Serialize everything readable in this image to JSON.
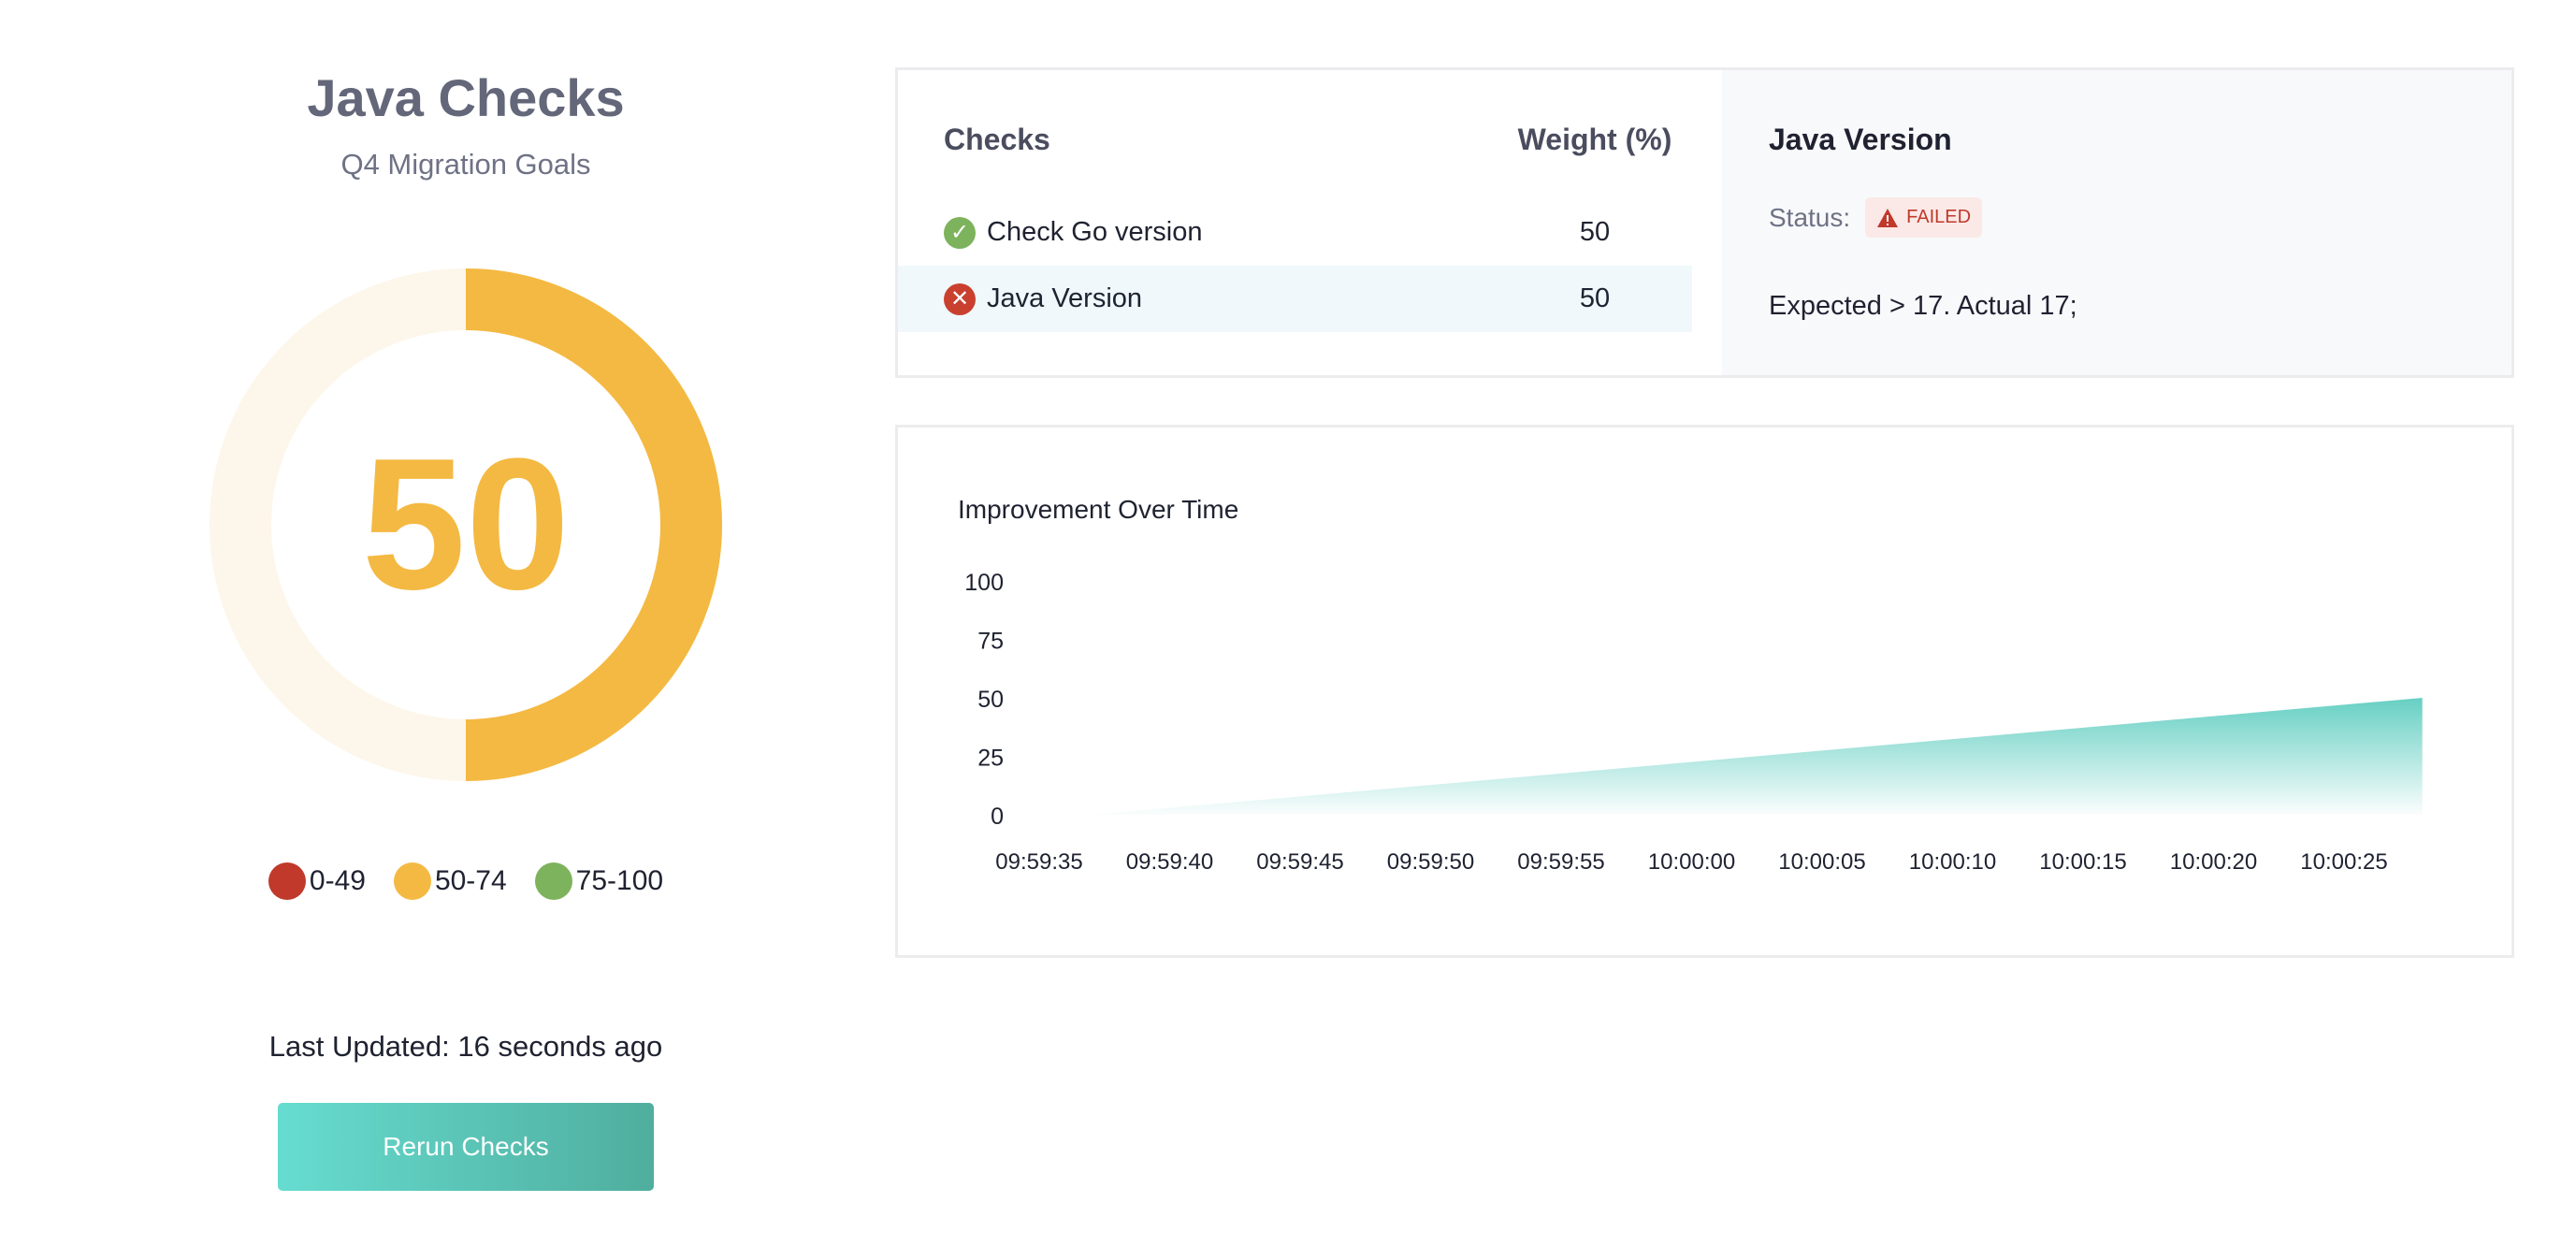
{
  "header": {
    "title": "Java Checks",
    "subtitle": "Q4 Migration Goals"
  },
  "score": {
    "value": "50",
    "fraction": 0.5,
    "color": "#f4b942",
    "track_color": "#fdf6ea"
  },
  "legend": [
    {
      "label": "0-49",
      "color": "#c0392b"
    },
    {
      "label": "50-74",
      "color": "#f4b942"
    },
    {
      "label": "75-100",
      "color": "#7db35c"
    }
  ],
  "last_updated": "Last Updated: 16 seconds ago",
  "rerun_label": "Rerun Checks",
  "checks": {
    "col_checks": "Checks",
    "col_weight": "Weight (%)",
    "rows": [
      {
        "name": "Check Go version",
        "weight": "50",
        "status": "passed",
        "icon": "check-circle-icon",
        "color": "#7db35c"
      },
      {
        "name": "Java Version",
        "weight": "50",
        "status": "failed",
        "icon": "x-circle-icon",
        "color": "#c9402f",
        "selected": true
      }
    ]
  },
  "detail": {
    "title": "Java Version",
    "status_label": "Status:",
    "status_badge": "FAILED",
    "message": "Expected > 17. Actual 17;"
  },
  "chart_data": {
    "type": "area",
    "title": "Improvement Over Time",
    "ylim": [
      0,
      100
    ],
    "yticks": [
      "0",
      "25",
      "50",
      "75",
      "100"
    ],
    "xticks": [
      "09:59:35",
      "09:59:40",
      "09:59:45",
      "09:59:50",
      "09:59:55",
      "10:00:00",
      "10:00:05",
      "10:00:10",
      "10:00:15",
      "10:00:20",
      "10:00:25"
    ],
    "series": [
      {
        "points": [
          {
            "x": "09:59:37",
            "y": 0
          },
          {
            "x": "10:00:28",
            "y": 50
          }
        ]
      }
    ],
    "color": "#5ecdc0",
    "grid": false
  }
}
